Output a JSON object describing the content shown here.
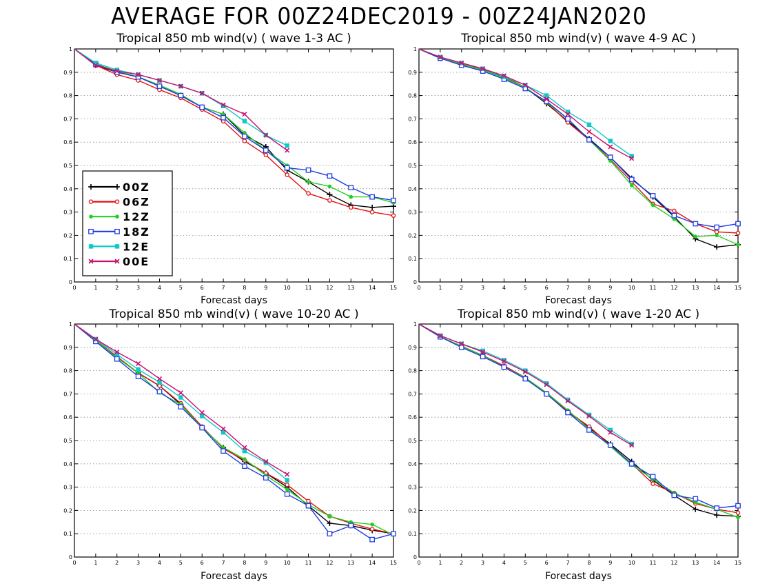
{
  "title": "AVERAGE FOR 00Z24DEC2019 - 00Z24JAN2020",
  "series_styles": [
    {
      "name": "00Z",
      "color": "#000000",
      "marker": "plus"
    },
    {
      "name": "06Z",
      "color": "#e01010",
      "marker": "circle"
    },
    {
      "name": "12Z",
      "color": "#20d020",
      "marker": "dot"
    },
    {
      "name": "18Z",
      "color": "#1e3ce6",
      "marker": "square"
    },
    {
      "name": "12E",
      "color": "#10c8c8",
      "marker": "filled-square"
    },
    {
      "name": "00E",
      "color": "#c8106e",
      "marker": "x"
    }
  ],
  "chart_data": [
    {
      "type": "line",
      "title": "Tropical 850 mb wind(v) ( wave 1-3 AC )",
      "xlabel": "Forecast days",
      "ylabel": "",
      "xlim": [
        0,
        15
      ],
      "ylim": [
        0,
        1
      ],
      "xticks": [
        "0",
        "1",
        "2",
        "3",
        "4",
        "5",
        "6",
        "7",
        "8",
        "9",
        "10",
        "11",
        "12",
        "13",
        "14",
        "15"
      ],
      "yticks": [
        "0",
        "0.1",
        "0.2",
        "0.3",
        "0.4",
        "0.5",
        "0.6",
        "0.7",
        "0.8",
        "0.9",
        "1"
      ],
      "grid": true,
      "legend": "bottom-left",
      "series": [
        {
          "name": "00Z",
          "x": [
            0,
            1,
            2,
            3,
            4,
            5,
            6,
            7,
            8,
            9,
            10,
            11,
            12,
            13,
            14,
            15
          ],
          "values": [
            1,
            0.93,
            0.9,
            0.88,
            0.84,
            0.8,
            0.75,
            0.72,
            0.63,
            0.58,
            0.48,
            0.43,
            0.375,
            0.33,
            0.32,
            0.325
          ]
        },
        {
          "name": "06Z",
          "x": [
            0,
            1,
            2,
            3,
            4,
            5,
            6,
            7,
            8,
            9,
            10,
            11,
            12,
            13,
            14,
            15
          ],
          "values": [
            1,
            0.93,
            0.89,
            0.865,
            0.825,
            0.79,
            0.74,
            0.69,
            0.605,
            0.545,
            0.46,
            0.38,
            0.35,
            0.32,
            0.3,
            0.285
          ]
        },
        {
          "name": "12Z",
          "x": [
            0,
            1,
            2,
            3,
            4,
            5,
            6,
            7,
            8,
            9,
            10,
            11,
            12,
            13,
            14,
            15
          ],
          "values": [
            1,
            0.935,
            0.905,
            0.88,
            0.845,
            0.805,
            0.75,
            0.72,
            0.64,
            0.565,
            0.5,
            0.43,
            0.41,
            0.365,
            0.365,
            0.34
          ]
        },
        {
          "name": "18Z",
          "x": [
            0,
            1,
            2,
            3,
            4,
            5,
            6,
            7,
            8,
            9,
            10,
            11,
            12,
            13,
            14,
            15
          ],
          "values": [
            1,
            0.935,
            0.9,
            0.88,
            0.84,
            0.8,
            0.75,
            0.705,
            0.625,
            0.565,
            0.49,
            0.48,
            0.455,
            0.405,
            0.365,
            0.35
          ]
        },
        {
          "name": "12E",
          "x": [
            0,
            1,
            2,
            3,
            4,
            5,
            6,
            7,
            8,
            9,
            10
          ],
          "values": [
            1,
            0.94,
            0.91,
            0.89,
            0.865,
            0.84,
            0.81,
            0.755,
            0.69,
            0.63,
            0.585
          ]
        },
        {
          "name": "00E",
          "x": [
            0,
            1,
            2,
            3,
            4,
            5,
            6,
            7,
            8,
            9,
            10
          ],
          "values": [
            1,
            0.93,
            0.905,
            0.89,
            0.865,
            0.84,
            0.81,
            0.76,
            0.72,
            0.63,
            0.565
          ]
        }
      ]
    },
    {
      "type": "line",
      "title": "Tropical 850 mb wind(v) ( wave 4-9 AC )",
      "xlabel": "Forecast days",
      "ylabel": "",
      "xlim": [
        0,
        15
      ],
      "ylim": [
        0,
        1
      ],
      "xticks": [
        "0",
        "1",
        "2",
        "3",
        "4",
        "5",
        "6",
        "7",
        "8",
        "9",
        "10",
        "11",
        "12",
        "13",
        "14",
        "15"
      ],
      "yticks": [
        "0",
        "0.1",
        "0.2",
        "0.3",
        "0.4",
        "0.5",
        "0.6",
        "0.7",
        "0.8",
        "0.9",
        "1"
      ],
      "grid": true,
      "series": [
        {
          "name": "00Z",
          "x": [
            0,
            1,
            2,
            3,
            4,
            5,
            6,
            7,
            8,
            9,
            10,
            11,
            12,
            13,
            14,
            15
          ],
          "values": [
            1,
            0.96,
            0.935,
            0.91,
            0.88,
            0.835,
            0.765,
            0.69,
            0.615,
            0.535,
            0.445,
            0.365,
            0.28,
            0.185,
            0.15,
            0.16
          ]
        },
        {
          "name": "06Z",
          "x": [
            0,
            1,
            2,
            3,
            4,
            5,
            6,
            7,
            8,
            9,
            10,
            11,
            12,
            13,
            14,
            15
          ],
          "values": [
            1,
            0.96,
            0.935,
            0.915,
            0.88,
            0.835,
            0.77,
            0.685,
            0.61,
            0.525,
            0.43,
            0.335,
            0.305,
            0.25,
            0.215,
            0.21
          ]
        },
        {
          "name": "12Z",
          "x": [
            0,
            1,
            2,
            3,
            4,
            5,
            6,
            7,
            8,
            9,
            10,
            11,
            12,
            13,
            14,
            15
          ],
          "values": [
            1,
            0.96,
            0.935,
            0.91,
            0.875,
            0.835,
            0.77,
            0.7,
            0.61,
            0.52,
            0.415,
            0.33,
            0.27,
            0.195,
            0.2,
            0.16
          ]
        },
        {
          "name": "18Z",
          "x": [
            0,
            1,
            2,
            3,
            4,
            5,
            6,
            7,
            8,
            9,
            10,
            11,
            12,
            13,
            14,
            15
          ],
          "values": [
            1,
            0.96,
            0.93,
            0.905,
            0.87,
            0.83,
            0.775,
            0.7,
            0.61,
            0.535,
            0.44,
            0.37,
            0.285,
            0.25,
            0.235,
            0.25
          ]
        },
        {
          "name": "12E",
          "x": [
            0,
            1,
            2,
            3,
            4,
            5,
            6,
            7,
            8,
            9,
            10
          ],
          "values": [
            1,
            0.965,
            0.94,
            0.915,
            0.88,
            0.845,
            0.8,
            0.73,
            0.675,
            0.605,
            0.54
          ]
        },
        {
          "name": "00E",
          "x": [
            0,
            1,
            2,
            3,
            4,
            5,
            6,
            7,
            8,
            9,
            10
          ],
          "values": [
            1,
            0.965,
            0.94,
            0.915,
            0.885,
            0.845,
            0.785,
            0.72,
            0.645,
            0.58,
            0.53
          ]
        }
      ]
    },
    {
      "type": "line",
      "title": "Tropical 850 mb wind(v) ( wave 10-20 AC )",
      "xlabel": "Forecast days",
      "ylabel": "",
      "xlim": [
        0,
        15
      ],
      "ylim": [
        0,
        1
      ],
      "xticks": [
        "0",
        "1",
        "2",
        "3",
        "4",
        "5",
        "6",
        "7",
        "8",
        "9",
        "10",
        "11",
        "12",
        "13",
        "14",
        "15"
      ],
      "yticks": [
        "0",
        "0.1",
        "0.2",
        "0.3",
        "0.4",
        "0.5",
        "0.6",
        "0.7",
        "0.8",
        "0.9",
        "1"
      ],
      "grid": true,
      "series": [
        {
          "name": "00Z",
          "x": [
            0,
            1,
            2,
            3,
            4,
            5,
            6,
            7,
            8,
            9,
            10,
            11,
            12,
            13,
            14,
            15
          ],
          "values": [
            1,
            0.93,
            0.86,
            0.79,
            0.735,
            0.655,
            0.555,
            0.47,
            0.41,
            0.36,
            0.3,
            0.22,
            0.145,
            0.135,
            0.115,
            0.1
          ]
        },
        {
          "name": "06Z",
          "x": [
            0,
            1,
            2,
            3,
            4,
            5,
            6,
            7,
            8,
            9,
            10,
            11,
            12,
            13,
            14,
            15
          ],
          "values": [
            1,
            0.93,
            0.86,
            0.79,
            0.735,
            0.66,
            0.56,
            0.465,
            0.415,
            0.36,
            0.31,
            0.24,
            0.175,
            0.145,
            0.12,
            0.1
          ]
        },
        {
          "name": "12Z",
          "x": [
            0,
            1,
            2,
            3,
            4,
            5,
            6,
            7,
            8,
            9,
            10,
            11,
            12,
            13,
            14,
            15
          ],
          "values": [
            1,
            0.93,
            0.855,
            0.79,
            0.705,
            0.655,
            0.555,
            0.47,
            0.42,
            0.35,
            0.29,
            0.225,
            0.175,
            0.15,
            0.14,
            0.095
          ]
        },
        {
          "name": "18Z",
          "x": [
            0,
            1,
            2,
            3,
            4,
            5,
            6,
            7,
            8,
            9,
            10,
            11,
            12,
            13,
            14,
            15
          ],
          "values": [
            1,
            0.925,
            0.85,
            0.775,
            0.71,
            0.645,
            0.555,
            0.455,
            0.39,
            0.34,
            0.27,
            0.22,
            0.1,
            0.135,
            0.075,
            0.1
          ]
        },
        {
          "name": "12E",
          "x": [
            0,
            1,
            2,
            3,
            4,
            5,
            6,
            7,
            8,
            9,
            10
          ],
          "values": [
            1,
            0.935,
            0.87,
            0.805,
            0.75,
            0.685,
            0.605,
            0.535,
            0.455,
            0.405,
            0.33
          ]
        },
        {
          "name": "00E",
          "x": [
            0,
            1,
            2,
            3,
            4,
            5,
            6,
            7,
            8,
            9,
            10
          ],
          "values": [
            1,
            0.935,
            0.88,
            0.83,
            0.765,
            0.705,
            0.62,
            0.55,
            0.47,
            0.41,
            0.355
          ]
        }
      ]
    },
    {
      "type": "line",
      "title": "Tropical 850 mb wind(v) ( wave 1-20 AC )",
      "xlabel": "Forecast days",
      "ylabel": "",
      "xlim": [
        0,
        15
      ],
      "ylim": [
        0,
        1
      ],
      "xticks": [
        "0",
        "1",
        "2",
        "3",
        "4",
        "5",
        "6",
        "7",
        "8",
        "9",
        "10",
        "11",
        "12",
        "13",
        "14",
        "15"
      ],
      "yticks": [
        "0",
        "0.1",
        "0.2",
        "0.3",
        "0.4",
        "0.5",
        "0.6",
        "0.7",
        "0.8",
        "0.9",
        "1"
      ],
      "grid": true,
      "series": [
        {
          "name": "00Z",
          "x": [
            0,
            1,
            2,
            3,
            4,
            5,
            6,
            7,
            8,
            9,
            10,
            11,
            12,
            13,
            14,
            15
          ],
          "values": [
            1,
            0.945,
            0.905,
            0.865,
            0.82,
            0.77,
            0.7,
            0.625,
            0.555,
            0.485,
            0.41,
            0.33,
            0.265,
            0.205,
            0.18,
            0.175
          ]
        },
        {
          "name": "06Z",
          "x": [
            0,
            1,
            2,
            3,
            4,
            5,
            6,
            7,
            8,
            9,
            10,
            11,
            12,
            13,
            14,
            15
          ],
          "values": [
            1,
            0.945,
            0.905,
            0.865,
            0.82,
            0.77,
            0.7,
            0.625,
            0.56,
            0.48,
            0.4,
            0.315,
            0.275,
            0.23,
            0.205,
            0.19
          ]
        },
        {
          "name": "12Z",
          "x": [
            0,
            1,
            2,
            3,
            4,
            5,
            6,
            7,
            8,
            9,
            10,
            11,
            12,
            13,
            14,
            15
          ],
          "values": [
            1,
            0.945,
            0.905,
            0.865,
            0.815,
            0.77,
            0.705,
            0.63,
            0.55,
            0.475,
            0.395,
            0.335,
            0.275,
            0.235,
            0.205,
            0.17
          ]
        },
        {
          "name": "18Z",
          "x": [
            0,
            1,
            2,
            3,
            4,
            5,
            6,
            7,
            8,
            9,
            10,
            11,
            12,
            13,
            14,
            15
          ],
          "values": [
            1,
            0.945,
            0.9,
            0.86,
            0.815,
            0.765,
            0.7,
            0.62,
            0.545,
            0.48,
            0.4,
            0.345,
            0.265,
            0.25,
            0.21,
            0.22
          ]
        },
        {
          "name": "12E",
          "x": [
            0,
            1,
            2,
            3,
            4,
            5,
            6,
            7,
            8,
            9,
            10
          ],
          "values": [
            1,
            0.95,
            0.915,
            0.885,
            0.845,
            0.8,
            0.745,
            0.675,
            0.61,
            0.545,
            0.485
          ]
        },
        {
          "name": "00E",
          "x": [
            0,
            1,
            2,
            3,
            4,
            5,
            6,
            7,
            8,
            9,
            10
          ],
          "values": [
            1,
            0.95,
            0.915,
            0.88,
            0.84,
            0.795,
            0.74,
            0.67,
            0.605,
            0.535,
            0.48
          ]
        }
      ]
    }
  ]
}
